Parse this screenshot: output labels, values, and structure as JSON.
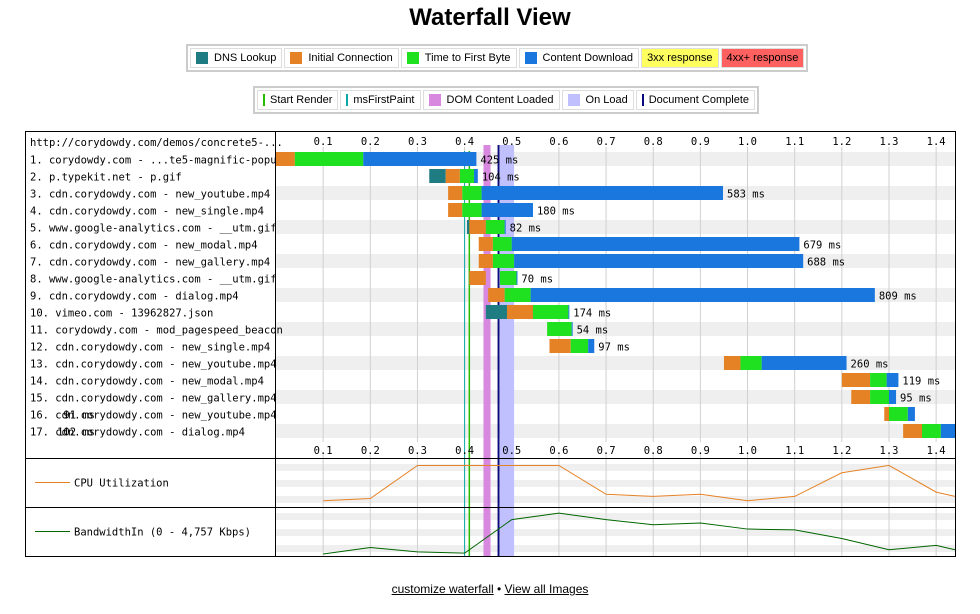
{
  "title": "Waterfall View",
  "legend_phases": [
    {
      "label": "DNS Lookup",
      "color": "#1f7c83"
    },
    {
      "label": "Initial Connection",
      "color": "#e58226"
    },
    {
      "label": "Time to First Byte",
      "color": "#1fe11f"
    },
    {
      "label": "Content Download",
      "color": "#1977dd"
    },
    {
      "label": "3xx response",
      "color": "#ffff60",
      "highlight": true
    },
    {
      "label": "4xx+ response",
      "color": "#ff6060",
      "highlight": true
    }
  ],
  "legend_events": [
    {
      "label": "Start Render",
      "color": "#28bc00",
      "style": "line"
    },
    {
      "label": "msFirstPaint",
      "color": "#0ca7a7",
      "style": "line"
    },
    {
      "label": "DOM Content Loaded",
      "color": "#d888df",
      "style": "band"
    },
    {
      "label": "On Load",
      "color": "#c0c0ff",
      "style": "band"
    },
    {
      "label": "Document Complete",
      "color": "#0a0a80",
      "style": "line"
    }
  ],
  "chart_data": {
    "type": "waterfall",
    "page_url": "http://corydowdy.com/demos/concrete5-...",
    "x_unit": "seconds",
    "xlim": [
      0,
      1.44
    ],
    "ticks": [
      "0.1",
      "0.2",
      "0.3",
      "0.4",
      "0.5",
      "0.6",
      "0.7",
      "0.8",
      "0.9",
      "1.0",
      "1.1",
      "1.2",
      "1.3",
      "1.4"
    ],
    "colors": {
      "dns": "#1f7c83",
      "connect": "#e58226",
      "ttfb": "#1fe11f",
      "download": "#1977dd"
    },
    "requests": [
      {
        "label": "1. corydowdy.com - ...te5-magnific-popup",
        "phases": [
          [
            "connect",
            0.0,
            0.04
          ],
          [
            "ttfb",
            0.04,
            0.185
          ],
          [
            "download",
            0.185,
            0.425
          ]
        ],
        "duration": "425 ms"
      },
      {
        "label": "2. p.typekit.net - p.gif",
        "phases": [
          [
            "dns",
            0.325,
            0.36
          ],
          [
            "connect",
            0.36,
            0.39
          ],
          [
            "ttfb",
            0.39,
            0.42
          ],
          [
            "download",
            0.42,
            0.428
          ]
        ],
        "duration": "104 ms"
      },
      {
        "label": "3. cdn.corydowdy.com - new_youtube.mp4",
        "phases": [
          [
            "connect",
            0.365,
            0.395
          ],
          [
            "ttfb",
            0.395,
            0.436
          ],
          [
            "download",
            0.436,
            0.948
          ]
        ],
        "duration": "583 ms"
      },
      {
        "label": "4. cdn.corydowdy.com - new_single.mp4",
        "phases": [
          [
            "connect",
            0.365,
            0.395
          ],
          [
            "ttfb",
            0.395,
            0.436
          ],
          [
            "download",
            0.436,
            0.545
          ]
        ],
        "duration": "180 ms"
      },
      {
        "label": "5. www.google-analytics.com - __utm.gif",
        "phases": [
          [
            "dns",
            0.405,
            0.41
          ],
          [
            "connect",
            0.41,
            0.445
          ],
          [
            "ttfb",
            0.445,
            0.485
          ],
          [
            "download",
            0.485,
            0.487
          ]
        ],
        "duration": "82 ms"
      },
      {
        "label": "6. cdn.corydowdy.com - new_modal.mp4",
        "phases": [
          [
            "connect",
            0.43,
            0.46
          ],
          [
            "ttfb",
            0.46,
            0.5
          ],
          [
            "download",
            0.5,
            1.11
          ]
        ],
        "duration": "679 ms"
      },
      {
        "label": "7. cdn.corydowdy.com - new_gallery.mp4",
        "phases": [
          [
            "connect",
            0.43,
            0.46
          ],
          [
            "ttfb",
            0.46,
            0.505
          ],
          [
            "download",
            0.505,
            1.118
          ]
        ],
        "duration": "688 ms"
      },
      {
        "label": "8. www.google-analytics.com - __utm.gif",
        "phases": [
          [
            "connect",
            0.41,
            0.445
          ],
          [
            "ttfb",
            0.475,
            0.51
          ],
          [
            "download",
            0.51,
            0.512
          ]
        ],
        "duration": "70 ms"
      },
      {
        "label": "9. cdn.corydowdy.com - dialog.mp4",
        "phases": [
          [
            "connect",
            0.45,
            0.485
          ],
          [
            "ttfb",
            0.485,
            0.54
          ],
          [
            "download",
            0.54,
            1.27
          ]
        ],
        "duration": "809 ms"
      },
      {
        "label": "10. vimeo.com - 13962827.json",
        "phases": [
          [
            "dns",
            0.445,
            0.49
          ],
          [
            "connect",
            0.49,
            0.545
          ],
          [
            "ttfb",
            0.545,
            0.62
          ],
          [
            "download",
            0.62,
            0.622
          ]
        ],
        "duration": "174 ms"
      },
      {
        "label": "11. corydowdy.com - mod_pagespeed_beacon",
        "phases": [
          [
            "ttfb",
            0.575,
            0.627
          ],
          [
            "download",
            0.627,
            0.629
          ]
        ],
        "duration": "54 ms"
      },
      {
        "label": "12. cdn.corydowdy.com - new_single.mp4",
        "phases": [
          [
            "connect",
            0.58,
            0.625
          ],
          [
            "ttfb",
            0.625,
            0.662
          ],
          [
            "download",
            0.662,
            0.675
          ]
        ],
        "duration": "97 ms"
      },
      {
        "label": "13. cdn.corydowdy.com - new_youtube.mp4",
        "phases": [
          [
            "connect",
            0.95,
            0.985
          ],
          [
            "ttfb",
            0.985,
            1.03
          ],
          [
            "download",
            1.03,
            1.21
          ]
        ],
        "duration": "260 ms"
      },
      {
        "label": "14. cdn.corydowdy.com - new_modal.mp4",
        "phases": [
          [
            "connect",
            1.2,
            1.26
          ],
          [
            "ttfb",
            1.26,
            1.295
          ],
          [
            "download",
            1.295,
            1.32
          ]
        ],
        "duration": "119 ms"
      },
      {
        "label": "15. cdn.corydowdy.com - new_gallery.mp4",
        "phases": [
          [
            "connect",
            1.22,
            1.26
          ],
          [
            "ttfb",
            1.26,
            1.3
          ],
          [
            "download",
            1.3,
            1.315
          ]
        ],
        "duration": "95 ms"
      },
      {
        "label": "16. cdn.corydowdy.com - new_youtube.mp4",
        "phases": [
          [
            "connect",
            1.29,
            1.3
          ],
          [
            "ttfb",
            1.3,
            1.34
          ],
          [
            "download",
            1.34,
            1.355
          ]
        ],
        "duration": "91 ms",
        "label_side": "left"
      },
      {
        "label": "17. cdn.corydowdy.com - dialog.mp4",
        "phases": [
          [
            "connect",
            1.33,
            1.37
          ],
          [
            "ttfb",
            1.37,
            1.41
          ],
          [
            "download",
            1.41,
            1.44
          ]
        ],
        "duration": "102 ms",
        "label_side": "left"
      }
    ],
    "markers": {
      "start_render": 0.41,
      "ms_first_paint": 0.4,
      "dom_content_loaded": [
        0.44,
        0.455
      ],
      "on_load": [
        0.475,
        0.505
      ],
      "document_complete": 0.472
    },
    "cpu": {
      "label": "CPU Utilization",
      "color": "#e58226",
      "points": [
        [
          0.1,
          0.1
        ],
        [
          0.2,
          0.15
        ],
        [
          0.3,
          0.92
        ],
        [
          0.4,
          0.92
        ],
        [
          0.5,
          0.92
        ],
        [
          0.6,
          0.92
        ],
        [
          0.7,
          0.25
        ],
        [
          0.8,
          0.2
        ],
        [
          0.9,
          0.25
        ],
        [
          1.0,
          0.1
        ],
        [
          1.1,
          0.2
        ],
        [
          1.2,
          0.75
        ],
        [
          1.3,
          0.92
        ],
        [
          1.4,
          0.3
        ],
        [
          1.44,
          0.2
        ]
      ]
    },
    "bandwidth": {
      "label": "BandwidthIn (0 - 4,757 Kbps)",
      "color": "#006600",
      "points": [
        [
          0.1,
          0.0
        ],
        [
          0.2,
          0.15
        ],
        [
          0.3,
          0.05
        ],
        [
          0.4,
          0.02
        ],
        [
          0.5,
          0.8
        ],
        [
          0.6,
          0.95
        ],
        [
          0.7,
          0.8
        ],
        [
          0.8,
          0.68
        ],
        [
          0.9,
          0.72
        ],
        [
          1.0,
          0.58
        ],
        [
          1.1,
          0.56
        ],
        [
          1.2,
          0.36
        ],
        [
          1.3,
          0.1
        ],
        [
          1.4,
          0.2
        ],
        [
          1.44,
          0.1
        ]
      ]
    }
  },
  "footer": {
    "customize_link": "customize waterfall",
    "separator": "•",
    "view_images_link": "View all Images"
  }
}
